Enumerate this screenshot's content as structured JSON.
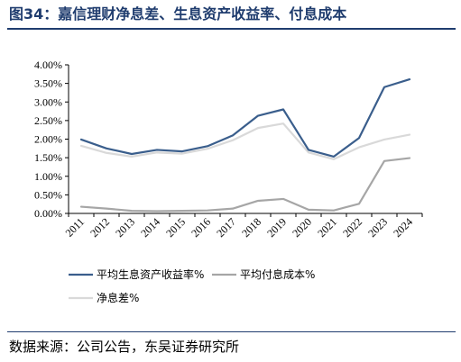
{
  "figure": {
    "title": "图34：嘉信理财净息差、生息资产收益率、付息成本",
    "source": "数据来源：公司公告，东吴证券研究所"
  },
  "chart_data": {
    "type": "line",
    "x": [
      "2011",
      "2012",
      "2013",
      "2014",
      "2015",
      "2016",
      "2017",
      "2018",
      "2019",
      "2020",
      "2021",
      "2022",
      "2023",
      "2024"
    ],
    "y_ticks": [
      "0.00%",
      "0.50%",
      "1.00%",
      "1.50%",
      "2.00%",
      "2.50%",
      "3.00%",
      "3.50%",
      "4.00%"
    ],
    "ylim": [
      0,
      4.0
    ],
    "y_unit": "%",
    "grid": false,
    "legend_position": "bottom",
    "series": [
      {
        "name": "平均生息资产收益率%",
        "color": "#3a5e8c",
        "values": [
          1.99,
          1.75,
          1.6,
          1.71,
          1.67,
          1.81,
          2.1,
          2.63,
          2.8,
          1.71,
          1.53,
          2.03,
          3.4,
          3.61
        ]
      },
      {
        "name": "平均付息成本%",
        "color": "#a6a6a6",
        "values": [
          0.18,
          0.13,
          0.07,
          0.06,
          0.07,
          0.08,
          0.13,
          0.34,
          0.39,
          0.1,
          0.08,
          0.26,
          1.41,
          1.49
        ]
      },
      {
        "name": "净息差%",
        "color": "#d9d9d9",
        "values": [
          1.82,
          1.63,
          1.53,
          1.64,
          1.61,
          1.74,
          1.97,
          2.3,
          2.42,
          1.64,
          1.46,
          1.78,
          1.99,
          2.12
        ]
      }
    ]
  }
}
